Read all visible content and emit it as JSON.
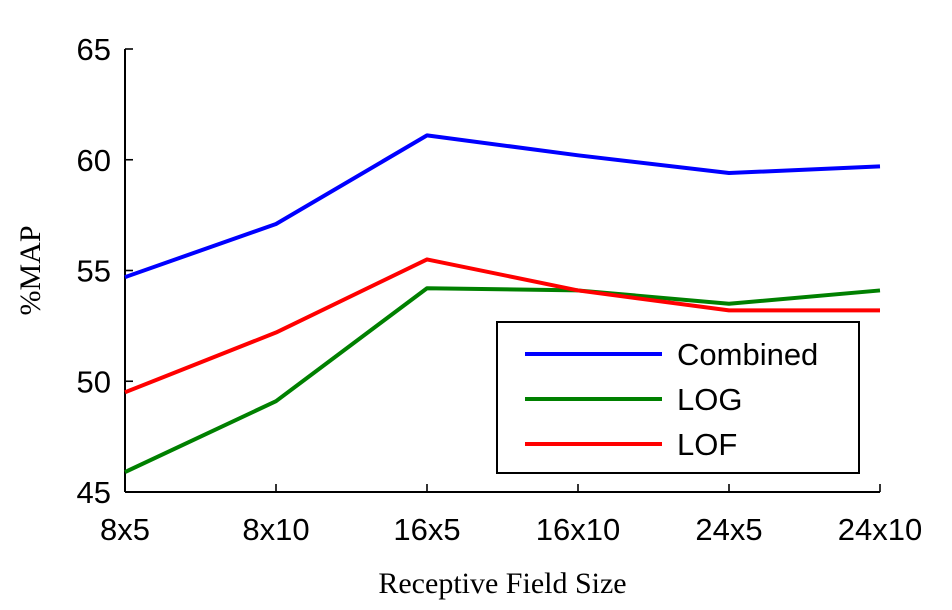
{
  "chart_data": {
    "type": "line",
    "title": "",
    "xlabel": "Receptive Field Size",
    "ylabel": "%MAP",
    "categories": [
      "8x5",
      "8x10",
      "16x5",
      "16x10",
      "24x5",
      "24x10"
    ],
    "ylim": [
      45,
      65
    ],
    "yticks": [
      45,
      50,
      55,
      60,
      65
    ],
    "grid": false,
    "legend_position": "lower-right",
    "series": [
      {
        "name": "Combined",
        "color": "#0000ff",
        "values": [
          54.7,
          57.1,
          61.1,
          60.2,
          59.4,
          59.7
        ]
      },
      {
        "name": "LOG",
        "color": "#008000",
        "values": [
          45.9,
          49.1,
          54.2,
          54.1,
          53.5,
          54.1
        ]
      },
      {
        "name": "LOF",
        "color": "#ff0000",
        "values": [
          49.5,
          52.2,
          55.5,
          54.1,
          53.2,
          53.2
        ]
      }
    ]
  }
}
